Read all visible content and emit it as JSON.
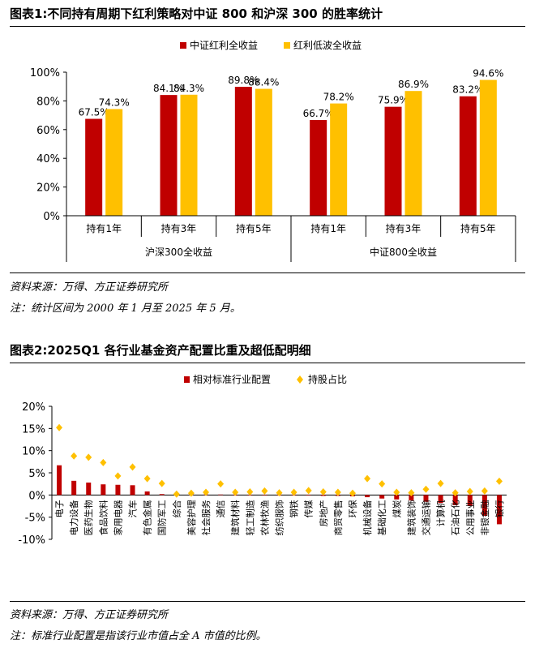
{
  "fig1": {
    "title": "图表1:不同持有周期下红利策略对中证 800 和沪深 300 的胜率统计",
    "source": "资料来源：万得、方正证券研究所",
    "note": "注：统计区间为 2000 年 1 月至 2025 年 5 月。"
  },
  "fig2": {
    "title": "图表2:2025Q1 各行业基金资产配置比重及超低配明细",
    "source": "资料来源：万得、方正证券研究所",
    "note": "注：标准行业配置是指该行业市值占全 A 市值的比例。"
  },
  "chart_data": [
    {
      "type": "bar",
      "title": "",
      "categories": [
        "持有1年",
        "持有3年",
        "持有5年",
        "持有1年",
        "持有3年",
        "持有5年"
      ],
      "groups": [
        {
          "label": "沪深300全收益",
          "span": [
            0,
            2
          ]
        },
        {
          "label": "中证800全收益",
          "span": [
            3,
            5
          ]
        }
      ],
      "series": [
        {
          "name": "中证红利全收益",
          "color": "#C00000",
          "values": [
            67.5,
            84.1,
            89.8,
            66.7,
            75.9,
            83.2
          ],
          "labels": [
            "67.5%",
            "84.1%",
            "89.8%",
            "66.7%",
            "75.9%",
            "83.2%"
          ]
        },
        {
          "name": "红利低波全收益",
          "color": "#FFC000",
          "values": [
            74.3,
            84.3,
            88.4,
            78.2,
            86.9,
            94.6
          ],
          "labels": [
            "74.3%",
            "84.3%",
            "88.4%",
            "78.2%",
            "86.9%",
            "94.6%"
          ]
        }
      ],
      "ylim": [
        0,
        100
      ],
      "yticks": [
        0,
        20,
        40,
        60,
        80,
        100
      ],
      "ytick_labels": [
        "0%",
        "20%",
        "40%",
        "60%",
        "80%",
        "100%"
      ],
      "legend": "top-center",
      "grid": false
    },
    {
      "type": "bar",
      "title": "",
      "categories": [
        "电子",
        "电力设备",
        "医药生物",
        "食品饮料",
        "家用电器",
        "汽车",
        "有色金属",
        "国防军工",
        "综合",
        "美容护理",
        "社会服务",
        "通信",
        "建筑材料",
        "轻工制造",
        "农林牧渔",
        "纺织服饰",
        "钢铁",
        "传媒",
        "房地产",
        "商贸零售",
        "环保",
        "机械设备",
        "基础化工",
        "煤炭",
        "建筑装饰",
        "交通运输",
        "计算机",
        "石油石化",
        "公用事业",
        "非银金融",
        "银行"
      ],
      "series": [
        {
          "name": "相对标准行业配置",
          "kind": "bar",
          "color": "#C00000",
          "values": [
            6.7,
            3.2,
            2.8,
            2.4,
            2.3,
            2.2,
            0.8,
            0.2,
            0.1,
            0.1,
            0.1,
            0.1,
            0.0,
            0.0,
            0.0,
            -0.1,
            -0.1,
            -0.1,
            -0.2,
            -0.2,
            -0.3,
            -0.5,
            -0.8,
            -1.0,
            -1.2,
            -1.5,
            -1.8,
            -2.3,
            -2.5,
            -4.7,
            -6.6
          ]
        },
        {
          "name": "持股占比",
          "kind": "marker",
          "color": "#FFC000",
          "values": [
            15.2,
            8.8,
            8.5,
            7.3,
            4.3,
            6.3,
            3.7,
            2.6,
            0.2,
            0.4,
            0.6,
            2.5,
            0.6,
            0.7,
            0.9,
            0.5,
            0.6,
            1.0,
            0.7,
            0.6,
            0.4,
            3.7,
            2.5,
            0.6,
            0.5,
            1.3,
            2.6,
            0.5,
            0.8,
            0.9,
            3.1
          ]
        }
      ],
      "ylim": [
        -10,
        20
      ],
      "yticks": [
        -10,
        -5,
        0,
        5,
        10,
        15,
        20
      ],
      "ytick_labels": [
        "-10%",
        "-5%",
        "0%",
        "5%",
        "10%",
        "15%",
        "20%"
      ],
      "legend": "top-center",
      "grid": false
    }
  ]
}
